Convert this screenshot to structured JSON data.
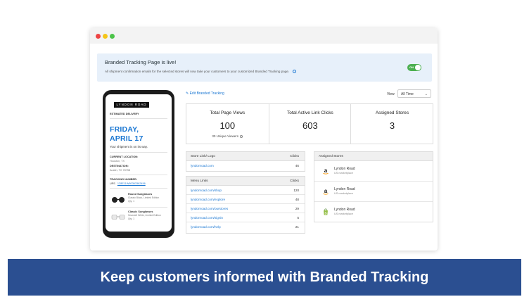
{
  "banner": {
    "title": "Branded Tracking Page is live!",
    "text": "All shipment confirmation emails for the selected stores will now take your customers to your customized Branded Tracking page.",
    "toggle_label": "ON"
  },
  "phone": {
    "brand": "LYNDON ROAD",
    "estimated_label": "ESTIMATED DELIVERY",
    "date_day": "FRIDAY,",
    "date_month": "APRIL 17",
    "status_text": "Your shipment is on its way.",
    "current_location_label": "CURRENT LOCATION:",
    "current_location": "Houston, TX",
    "destination_label": "DESTINATION:",
    "destination": "Austin, TX 78758",
    "tracking_label": "TRACKING NUMBER:",
    "tracking_carrier": "UPS",
    "tracking_number": "1Z8E11W80363362456",
    "products": [
      {
        "name": "Round Sunglasses",
        "desc": "Classic Black, Limited Edition",
        "qty": "Qty: 1"
      },
      {
        "name": "Classic Sunglasses",
        "desc": "Seashell White, Limited Edition",
        "qty": "Qty: 1"
      }
    ]
  },
  "toolbar": {
    "edit_label": "Edit Branded Tracking",
    "view_label": "View",
    "view_value": "All Time"
  },
  "stats": [
    {
      "label": "Total Page Views",
      "value": "100",
      "sub": "30 Unique Viewers"
    },
    {
      "label": "Total Active Link Clicks",
      "value": "603",
      "sub": ""
    },
    {
      "label": "Assigned Stores",
      "value": "3",
      "sub": ""
    }
  ],
  "store_link_table": {
    "headers": [
      "Store Link/ Logo",
      "Clicks"
    ],
    "rows": [
      [
        "lyndonroad.com",
        "46"
      ]
    ]
  },
  "menu_links_table": {
    "headers": [
      "Menu Links",
      "Clicks"
    ],
    "rows": [
      [
        "lyndonroad.com/shop",
        "120"
      ],
      [
        "lyndonroad.com/explore",
        "48"
      ],
      [
        "lyndonroad.com/ourstores",
        "29"
      ],
      [
        "lyndonroad.com/signin",
        "5"
      ],
      [
        "lyndonroad.com/help",
        "21"
      ]
    ]
  },
  "assigned_stores": {
    "header": "Assigned Stores",
    "items": [
      {
        "name": "Lyndon Road",
        "sub": "US marketplace",
        "icon": "amazon-icon"
      },
      {
        "name": "Lyndon Road",
        "sub": "US marketplace",
        "icon": "amazon-icon"
      },
      {
        "name": "Lyndon Road",
        "sub": "US marketplace",
        "icon": "shopify-icon"
      }
    ]
  },
  "footer_banner": "Keep customers informed with Branded Tracking",
  "colors": {
    "accent": "#1976d2",
    "toggle_on": "#4caf50",
    "banner_bg": "#e7f0fa",
    "footer_bg": "#2b4f91",
    "close_dot": "#ee4444",
    "minimize_dot": "#f5c518",
    "maximize_dot": "#4cc449"
  }
}
